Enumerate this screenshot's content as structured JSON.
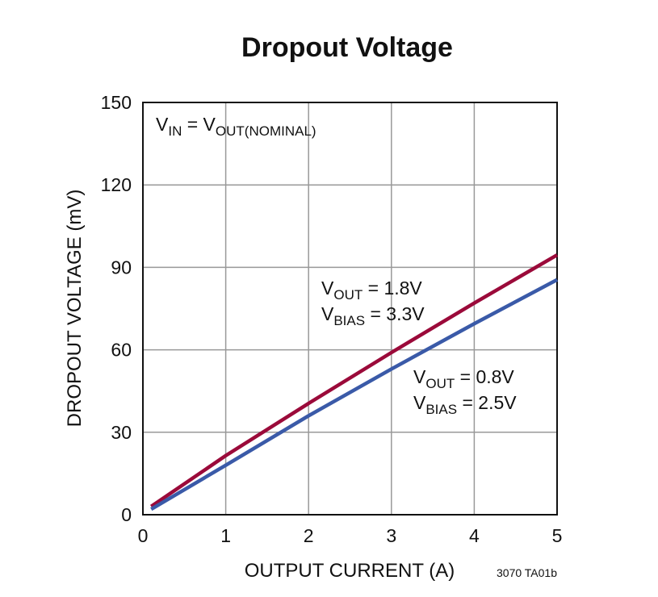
{
  "chart_data": {
    "type": "line",
    "title": "Dropout Voltage",
    "x_label": "OUTPUT CURRENT (A)",
    "y_label": "DROPOUT VOLTAGE (mV)",
    "x": [
      0.1,
      1,
      2,
      3,
      4,
      5
    ],
    "series": [
      {
        "color": "#9b0a3a",
        "values": [
          3,
          21.5,
          40.5,
          59,
          77,
          94.5
        ],
        "label": [
          [
            "V",
            "OUT",
            " = 1.8V"
          ],
          [
            "V",
            "BIAS",
            " = 3.3V"
          ]
        ]
      },
      {
        "color": "#3a5aa8",
        "values": [
          2,
          18,
          36,
          53,
          69.5,
          85.5
        ],
        "label": [
          [
            "V",
            "OUT",
            " = 0.8V"
          ],
          [
            "V",
            "BIAS",
            " = 2.5V"
          ]
        ]
      }
    ],
    "annotation": [
      "V",
      "IN",
      " = V",
      "OUT(NOMINAL)"
    ],
    "footnote": "3070 TA01b",
    "xlim": [
      0,
      5
    ],
    "xticks": [
      0,
      1,
      2,
      3,
      4,
      5
    ],
    "ylim": [
      0,
      150
    ],
    "yticks": [
      0,
      30,
      60,
      90,
      120,
      150
    ],
    "grid": true
  }
}
